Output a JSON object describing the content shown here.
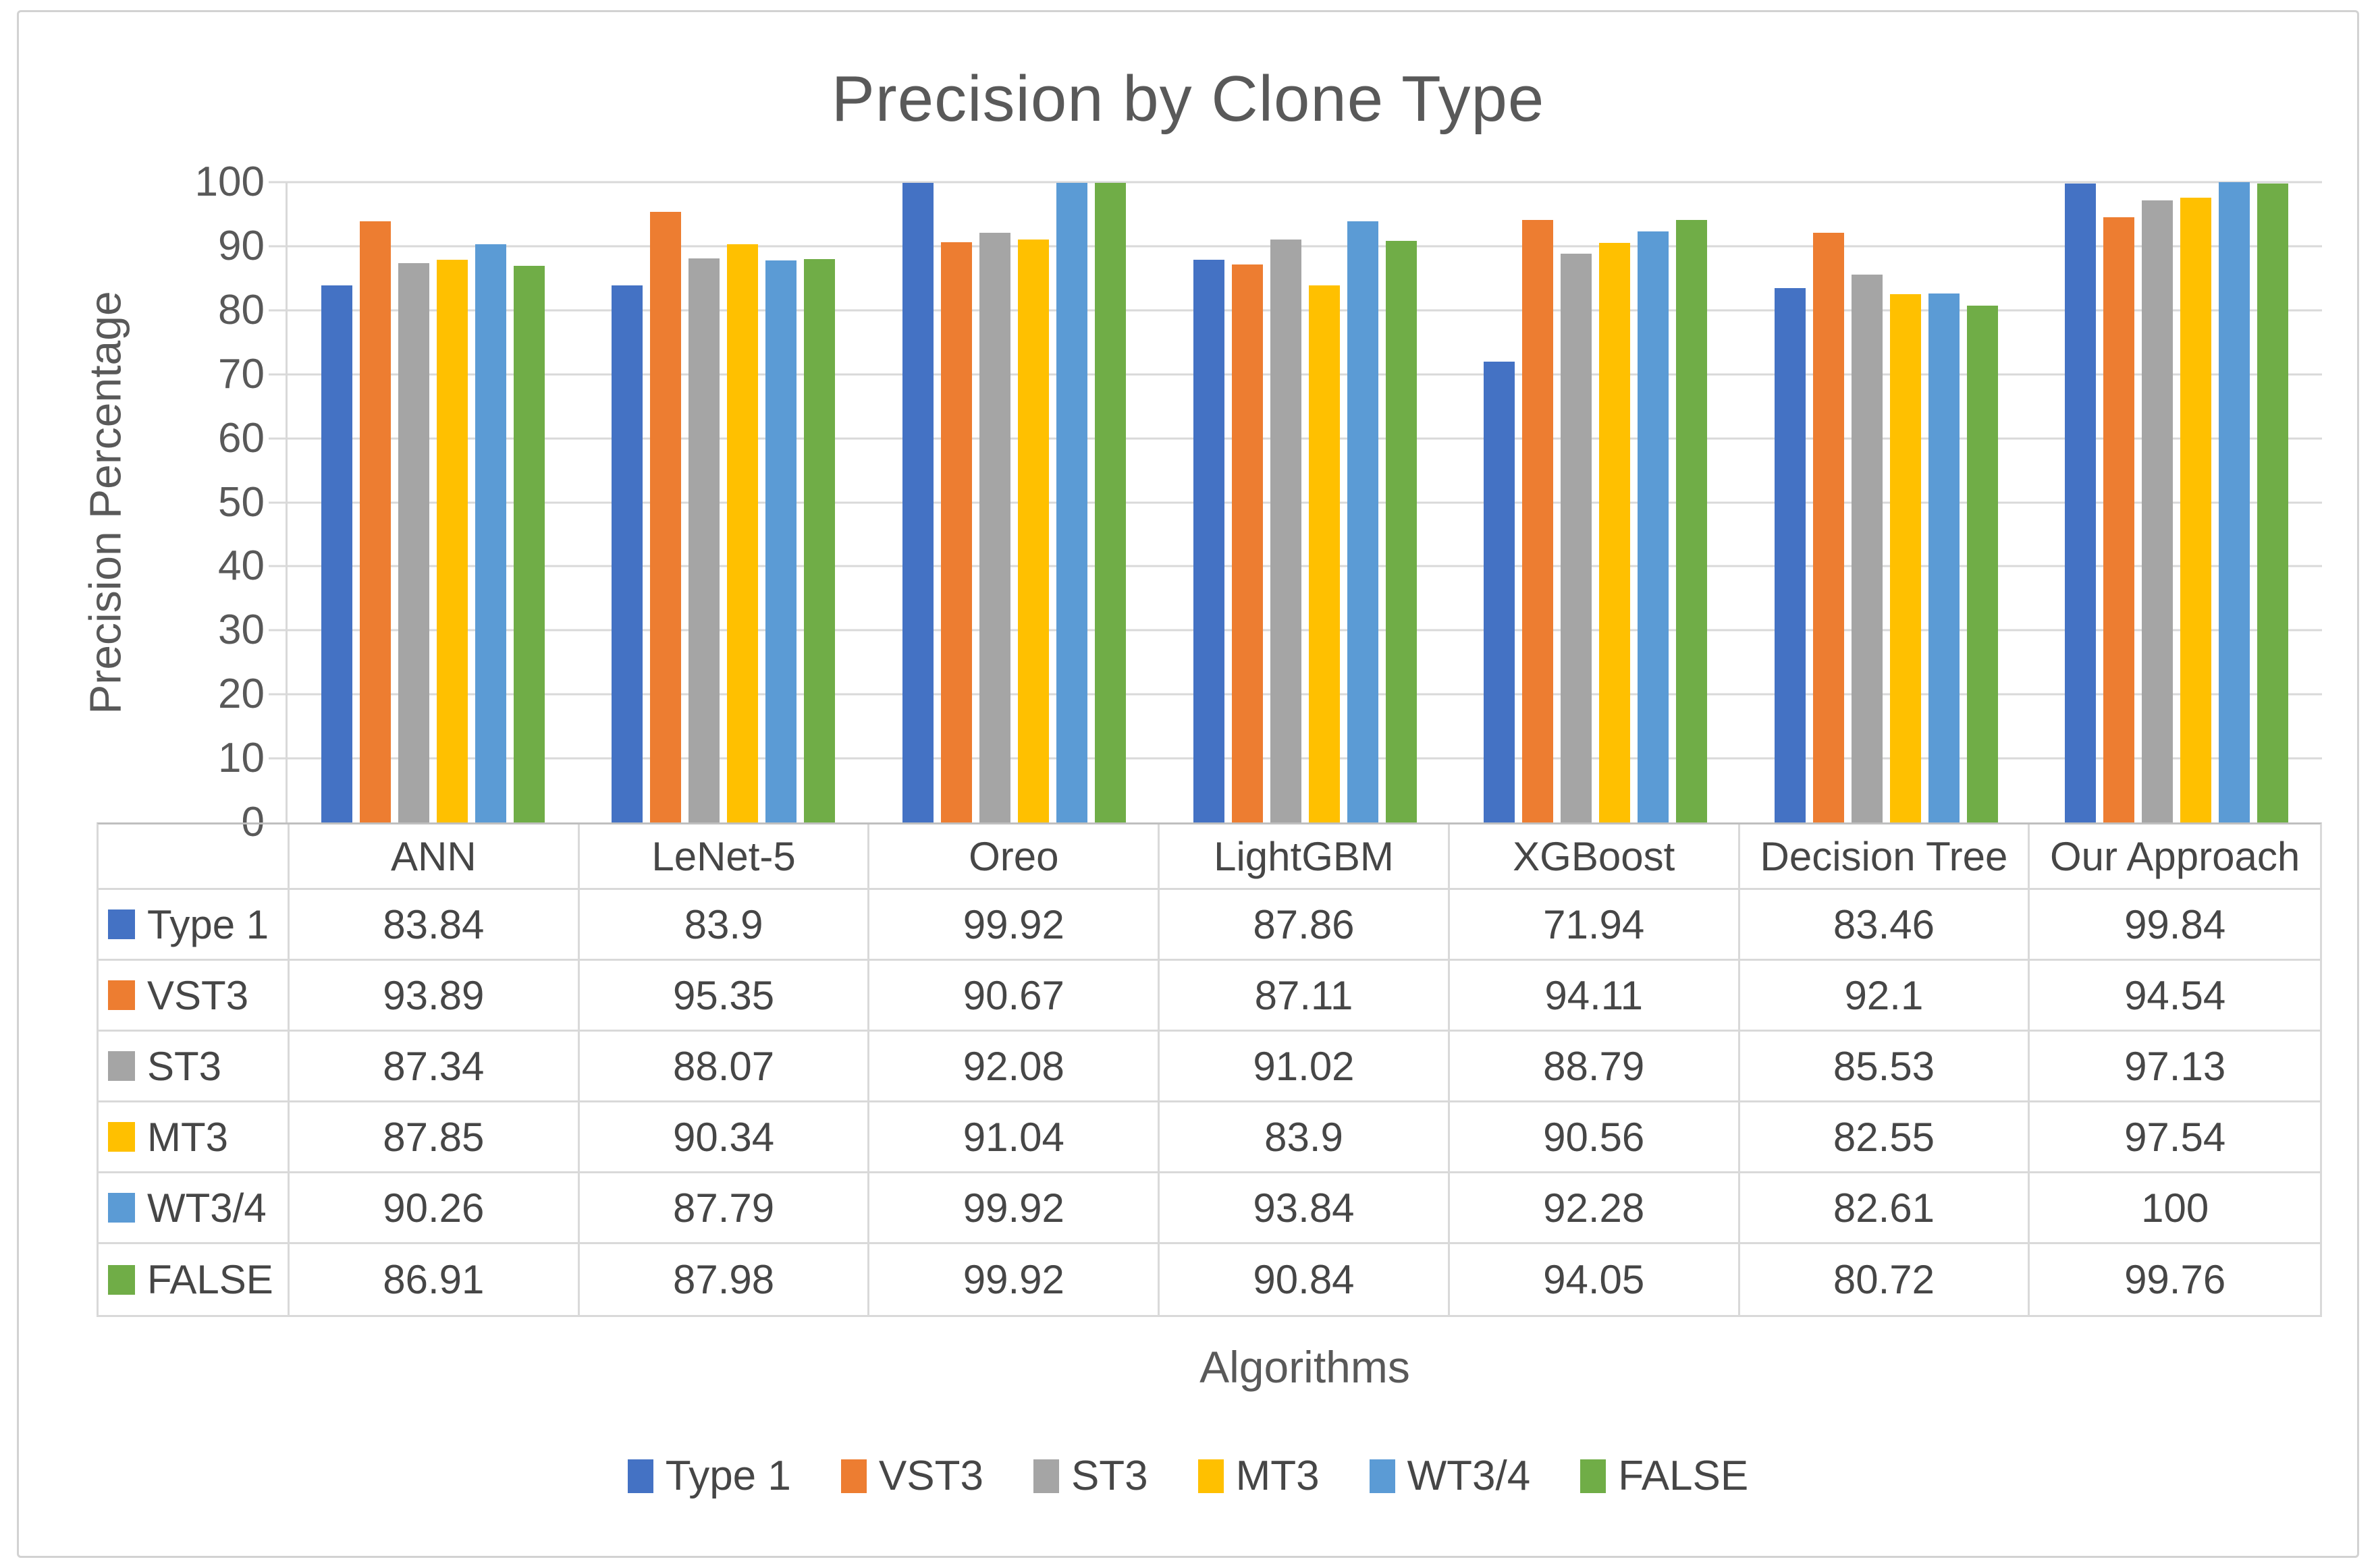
{
  "chart_data": {
    "type": "bar",
    "title": "Precision by Clone Type",
    "xlabel": "Algorithms",
    "ylabel": "Precision Percentage",
    "ylim": [
      0,
      100
    ],
    "ytick_step": 10,
    "grid": true,
    "legend_position": "bottom",
    "data_table_shown": true,
    "categories": [
      "ANN",
      "LeNet-5",
      "Oreo",
      "LightGBM",
      "XGBoost",
      "Decision Tree",
      "Our Approach"
    ],
    "series": [
      {
        "name": "Type 1",
        "color": "#4472C4",
        "values": [
          83.84,
          83.9,
          99.92,
          87.86,
          71.94,
          83.46,
          99.84
        ]
      },
      {
        "name": "VST3",
        "color": "#ED7D31",
        "values": [
          93.89,
          95.35,
          90.67,
          87.11,
          94.11,
          92.1,
          94.54
        ]
      },
      {
        "name": "ST3",
        "color": "#A5A5A5",
        "values": [
          87.34,
          88.07,
          92.08,
          91.02,
          88.79,
          85.53,
          97.13
        ]
      },
      {
        "name": "MT3",
        "color": "#FFC000",
        "values": [
          87.85,
          90.34,
          91.04,
          83.9,
          90.56,
          82.55,
          97.54
        ]
      },
      {
        "name": "WT3/4",
        "color": "#5B9BD5",
        "values": [
          90.26,
          87.79,
          99.92,
          93.84,
          92.28,
          82.61,
          100
        ]
      },
      {
        "name": "FALSE",
        "color": "#70AD47",
        "values": [
          86.91,
          87.98,
          99.92,
          90.84,
          94.05,
          80.72,
          99.76
        ]
      }
    ],
    "colors": {
      "gridline": "#D9D9D9",
      "axis_text": "#595959",
      "table_text": "#464646",
      "table_border": "#D9D9D9",
      "frame_border": "#D2D2D2"
    }
  }
}
